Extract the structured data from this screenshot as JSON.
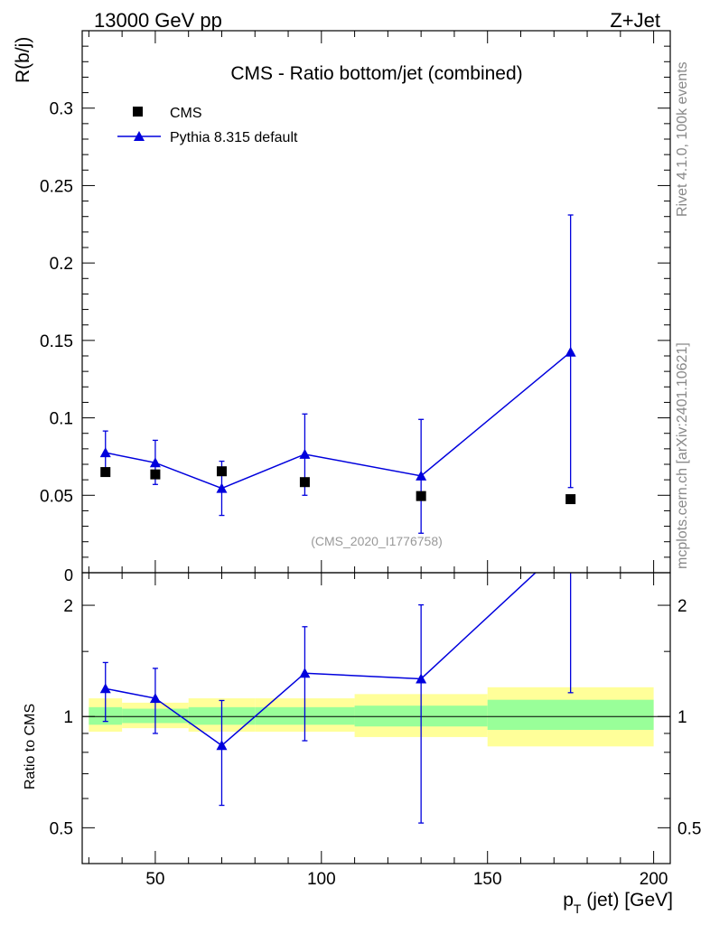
{
  "header": {
    "left": "13000 GeV pp",
    "right": "Z+Jet"
  },
  "side_text": {
    "rivet": "Rivet 4.1.0,  100k events",
    "mcplots": "mcplots.cern.ch [arXiv:2401.10621]"
  },
  "chart_data": {
    "type": "scatter",
    "title": "CMS - Ratio bottom/jet (combined)",
    "analysis_id": "(CMS_2020_I1776758)",
    "xlabel_main": "p",
    "xlabel_sub": "T",
    "xlabel_rest": " (jet) [GeV]",
    "xlim": [
      28,
      205
    ],
    "x_ticks": [
      50,
      100,
      150,
      200
    ],
    "x_tick_labels": [
      "50",
      "100",
      "150",
      "200"
    ],
    "main": {
      "ylabel": "R(b/j)",
      "ylim": [
        0,
        0.35
      ],
      "y_ticks": [
        0.05,
        0.1,
        0.15,
        0.2,
        0.25,
        0.3
      ],
      "y_tick_labels": [
        "0.05",
        "0.1",
        "0.15",
        "0.2",
        "0.25",
        "0.3"
      ],
      "zero_label": "0"
    },
    "ratio": {
      "ylabel": "Ratio to CMS",
      "ylim_log": [
        0.4,
        2.45
      ],
      "y_ticks": [
        0.5,
        1,
        2
      ],
      "y_tick_labels": [
        "0.5",
        "1",
        "2"
      ]
    },
    "legend": {
      "position": "top-left",
      "entries": [
        "CMS",
        "Pythia 8.315 default"
      ]
    },
    "colors": {
      "data": "#000000",
      "mc": "#0000dd",
      "band_inner": "#99ff99",
      "band_outer": "#ffff99"
    },
    "series": [
      {
        "name": "CMS",
        "x": [
          35,
          50,
          70,
          95,
          130,
          175
        ],
        "y": [
          0.065,
          0.0635,
          0.0655,
          0.0585,
          0.0495,
          0.0475
        ],
        "bins": [
          [
            30,
            40
          ],
          [
            40,
            60
          ],
          [
            60,
            80
          ],
          [
            80,
            110
          ],
          [
            110,
            150
          ],
          [
            150,
            200
          ]
        ],
        "ratio_inner": [
          [
            0.95,
            1.06
          ],
          [
            0.96,
            1.05
          ],
          [
            0.95,
            1.06
          ],
          [
            0.95,
            1.06
          ],
          [
            0.94,
            1.07
          ],
          [
            0.92,
            1.11
          ]
        ],
        "ratio_outer": [
          [
            0.91,
            1.12
          ],
          [
            0.93,
            1.09
          ],
          [
            0.91,
            1.12
          ],
          [
            0.91,
            1.12
          ],
          [
            0.88,
            1.15
          ],
          [
            0.83,
            1.2
          ]
        ]
      },
      {
        "name": "Pythia 8.315 default",
        "x": [
          35,
          50,
          70,
          95,
          130,
          175
        ],
        "y": [
          0.0775,
          0.071,
          0.0545,
          0.0765,
          0.0625,
          0.1425
        ],
        "err_low": [
          0.0145,
          0.014,
          0.0175,
          0.0265,
          0.037,
          0.0875
        ],
        "err_high": [
          0.014,
          0.0145,
          0.0175,
          0.026,
          0.0365,
          0.0885
        ],
        "ratio": [
          1.19,
          1.12,
          0.835,
          1.31,
          1.265,
          3.0
        ],
        "ratio_err_low": [
          0.22,
          0.22,
          0.26,
          0.45,
          0.75,
          1.84
        ],
        "ratio_err_high": [
          0.21,
          0.23,
          0.27,
          0.44,
          0.74,
          1.86
        ]
      }
    ]
  }
}
